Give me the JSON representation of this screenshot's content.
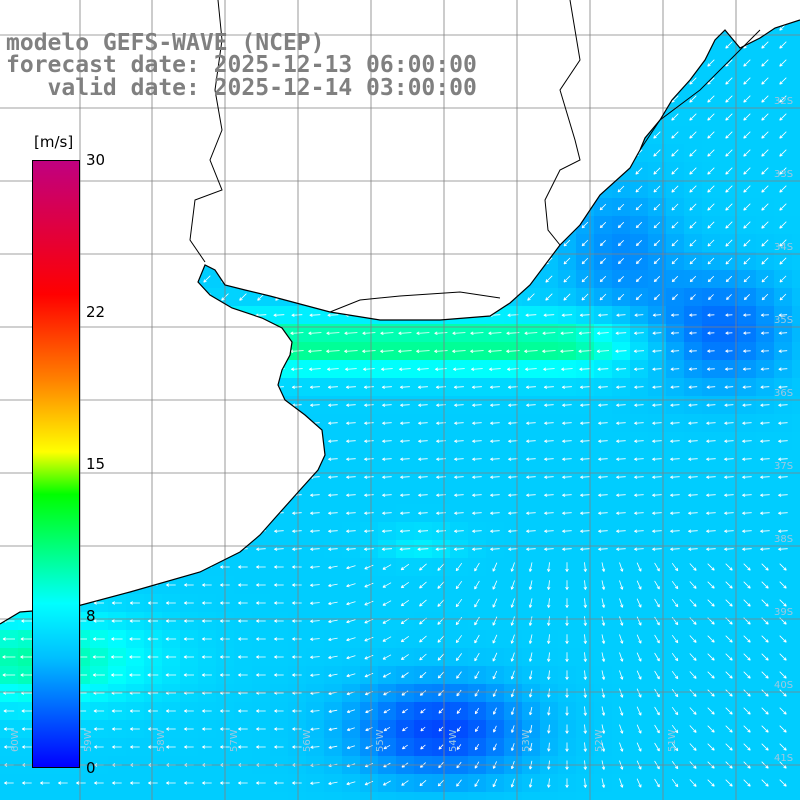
{
  "title": {
    "line1": "modelo GEFS-WAVE (NCEP)",
    "line2": "forecast date: 2025-12-13 06:00:00",
    "line3": "   valid date: 2025-12-14 03:00:00"
  },
  "colorbar": {
    "unit": "[m/s]",
    "ticks": [
      "30",
      "22",
      "15",
      "8",
      "0"
    ],
    "range": [
      0,
      30
    ],
    "colors": [
      "#0000ff",
      "#00bfff",
      "#00ffff",
      "#00ff00",
      "#ffff00",
      "#ff8000",
      "#ff0000",
      "#c00080"
    ]
  },
  "map": {
    "variable": "wind speed and direction",
    "land_color": "#ffffff",
    "coastline_color": "#000000",
    "grid_color": "#808080",
    "arrow_color": "#ffffff",
    "lon_labels": [
      "60W",
      "59W",
      "58W",
      "57W",
      "56W",
      "55W",
      "54W",
      "53W",
      "52W",
      "51W"
    ],
    "lat_labels": [
      "32S",
      "33S",
      "34S",
      "35S",
      "36S",
      "37S",
      "38S",
      "39S",
      "40S",
      "41S"
    ]
  }
}
